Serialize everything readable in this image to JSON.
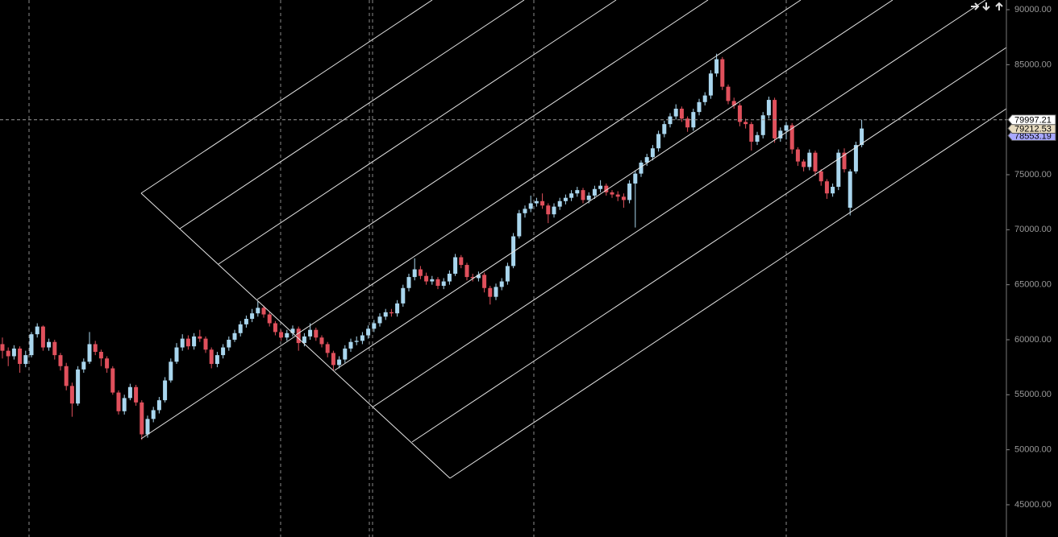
{
  "chart_data": {
    "type": "candlestick",
    "up_color": "#a9d6ee",
    "down_color": "#e0505c",
    "ylim": [
      42070,
      90880
    ],
    "yticks": [
      {
        "value": 45000,
        "label": "45000.00"
      },
      {
        "value": 50000,
        "label": "50000.00"
      },
      {
        "value": 55000,
        "label": "55000.00"
      },
      {
        "value": 60000,
        "label": "60000.00"
      },
      {
        "value": 65000,
        "label": "65000.00"
      },
      {
        "value": 70000,
        "label": "70000.00"
      },
      {
        "value": 75000,
        "label": "75000.00"
      },
      {
        "value": 80000,
        "label": "80000.00"
      },
      {
        "value": 85000,
        "label": "85000.00"
      },
      {
        "value": 90000,
        "label": "90000.00"
      }
    ],
    "price_line": 79997.21,
    "price_labels": [
      {
        "value": 78553.19,
        "color": "#a8a8ff"
      },
      {
        "value": 79212.53,
        "color": "#e8dcc0"
      },
      {
        "value": 79997.21,
        "color": "#ffffff"
      }
    ],
    "open": [
      59600,
      59000,
      58500,
      59200,
      57800,
      58600,
      60500,
      61200,
      59300,
      59800,
      58600,
      57600,
      55800,
      54200,
      57300,
      58000,
      59600,
      58900,
      58300,
      57400,
      55200,
      53500,
      54700,
      55700,
      54300,
      51400,
      52800,
      53600,
      54500,
      56300,
      58000,
      59300,
      60100,
      59400,
      60300,
      60100,
      59100,
      57800,
      58600,
      59300,
      60000,
      60600,
      61400,
      61900,
      62400,
      62900,
      62300,
      61500,
      60700,
      60200,
      60600,
      61000,
      59700,
      60300,
      60900,
      60200,
      59600,
      58800,
      57700,
      58200,
      59200,
      59800,
      59900,
      60400,
      61000,
      61500,
      62100,
      62500,
      62400,
      63300,
      64700,
      65700,
      66400,
      65800,
      65300,
      65500,
      64900,
      65300,
      66000,
      67500,
      66800,
      65700,
      65600,
      65900,
      64700,
      63900,
      64800,
      65300,
      66700,
      69400,
      71500,
      71900,
      72400,
      72600,
      72200,
      71400,
      72100,
      72600,
      72900,
      73300,
      73600,
      72700,
      73100,
      73700,
      74000,
      73400,
      73200,
      73000,
      72700,
      74200,
      75100,
      76100,
      76600,
      77400,
      78700,
      79600,
      80300,
      81000,
      80100,
      79300,
      80700,
      81600,
      82200,
      84200,
      85500,
      83000,
      81700,
      81300,
      79800,
      79600,
      78000,
      78600,
      80400,
      81800,
      78300,
      79000,
      79500,
      77300,
      76200,
      75700,
      77000,
      75300,
      74400,
      73300,
      73900,
      77000,
      72000,
      75300,
      77700
    ],
    "high": [
      60200,
      59300,
      59500,
      59400,
      59000,
      60700,
      61500,
      61300,
      60100,
      60000,
      58800,
      57900,
      56100,
      57600,
      58300,
      60700,
      59900,
      59100,
      58500,
      57600,
      55400,
      55000,
      56000,
      55900,
      54500,
      53100,
      53900,
      54800,
      56600,
      58300,
      59700,
      60500,
      60400,
      60600,
      60900,
      60300,
      59300,
      58900,
      59600,
      60300,
      60900,
      61700,
      62200,
      62800,
      63500,
      63100,
      62500,
      61700,
      60900,
      60900,
      61300,
      61200,
      60600,
      61500,
      61100,
      60400,
      59800,
      59000,
      58500,
      59500,
      60100,
      60300,
      60700,
      61300,
      61800,
      62400,
      62800,
      62800,
      63600,
      65000,
      66000,
      67400,
      66700,
      66100,
      65800,
      65700,
      65600,
      66300,
      67800,
      67700,
      67000,
      66000,
      66200,
      66100,
      64900,
      65100,
      65600,
      67000,
      69700,
      71800,
      72200,
      73100,
      72900,
      73300,
      72400,
      72400,
      72900,
      73200,
      73600,
      73900,
      73800,
      73400,
      74000,
      74500,
      74200,
      73600,
      73500,
      73300,
      74500,
      75400,
      76300,
      76900,
      77700,
      79000,
      79900,
      80600,
      81400,
      81200,
      80300,
      81000,
      81900,
      82500,
      84500,
      86000,
      85700,
      83200,
      82000,
      81500,
      80100,
      79800,
      78900,
      80700,
      82100,
      82000,
      79300,
      79800,
      79700,
      77500,
      76400,
      77300,
      77200,
      75500,
      74600,
      74200,
      77300,
      77400,
      75500,
      78000,
      80000
    ],
    "low": [
      58300,
      57600,
      58200,
      57000,
      57500,
      58400,
      60200,
      59000,
      59000,
      58200,
      57200,
      55400,
      53000,
      54000,
      57000,
      57800,
      58600,
      57600,
      57000,
      55000,
      53200,
      53200,
      54500,
      54000,
      50900,
      51100,
      52500,
      53300,
      54300,
      56100,
      57800,
      59000,
      59100,
      59100,
      59800,
      58800,
      57400,
      57500,
      58300,
      59000,
      59800,
      60300,
      61100,
      61600,
      62100,
      62000,
      61200,
      60400,
      59900,
      59900,
      60300,
      59000,
      59400,
      60000,
      59900,
      59300,
      58400,
      57200,
      57400,
      57900,
      58900,
      59500,
      59600,
      60100,
      60700,
      61200,
      61800,
      62100,
      62100,
      63000,
      64400,
      65400,
      65500,
      65000,
      65000,
      64600,
      64600,
      65000,
      65800,
      66500,
      65400,
      65300,
      65300,
      64300,
      63200,
      63600,
      64500,
      65000,
      66500,
      69200,
      71100,
      71600,
      72100,
      71900,
      70600,
      71100,
      71800,
      72300,
      72600,
      73000,
      72400,
      72400,
      72800,
      73400,
      73100,
      72900,
      72600,
      72000,
      72400,
      70200,
      74800,
      75800,
      76300,
      77100,
      78400,
      79300,
      80000,
      79800,
      78900,
      79000,
      80400,
      81300,
      81900,
      83900,
      82700,
      81400,
      81000,
      79400,
      79200,
      77200,
      77700,
      78300,
      80100,
      77900,
      78000,
      78200,
      76900,
      75800,
      75300,
      75400,
      74900,
      74000,
      72800,
      73000,
      73600,
      75200,
      71300,
      75100,
      77500
    ],
    "close": [
      59000,
      58500,
      59200,
      57800,
      58600,
      60500,
      61200,
      59300,
      59800,
      58600,
      57600,
      55800,
      54200,
      57300,
      58000,
      59600,
      58900,
      58300,
      57400,
      55200,
      53500,
      54700,
      55700,
      54300,
      51400,
      52800,
      53600,
      54500,
      56300,
      58000,
      59300,
      60100,
      59400,
      60300,
      60100,
      59100,
      57800,
      58600,
      59300,
      60000,
      60600,
      61400,
      61900,
      62400,
      62900,
      62300,
      61500,
      60700,
      60200,
      60600,
      61000,
      59700,
      60300,
      60900,
      60200,
      59600,
      58800,
      57700,
      58200,
      59200,
      59800,
      59900,
      60400,
      61000,
      61500,
      62100,
      62500,
      62400,
      63300,
      64700,
      65700,
      66400,
      65800,
      65300,
      65500,
      64900,
      65300,
      66000,
      67500,
      66800,
      65700,
      65600,
      65900,
      64700,
      63900,
      64800,
      65300,
      66700,
      69400,
      71500,
      71900,
      72400,
      72600,
      72200,
      71400,
      72100,
      72600,
      72900,
      73300,
      73600,
      72700,
      73100,
      73700,
      74000,
      73400,
      73200,
      73000,
      72700,
      74200,
      75100,
      76100,
      76600,
      77400,
      78700,
      79600,
      80300,
      81000,
      80100,
      79300,
      80700,
      81600,
      82200,
      84200,
      85500,
      83000,
      81700,
      81300,
      79800,
      79600,
      78000,
      78600,
      80400,
      81800,
      78300,
      79000,
      79500,
      77300,
      76200,
      75700,
      77000,
      75300,
      74400,
      73300,
      73900,
      77000,
      75500,
      75300,
      77700,
      79200
    ]
  }
}
